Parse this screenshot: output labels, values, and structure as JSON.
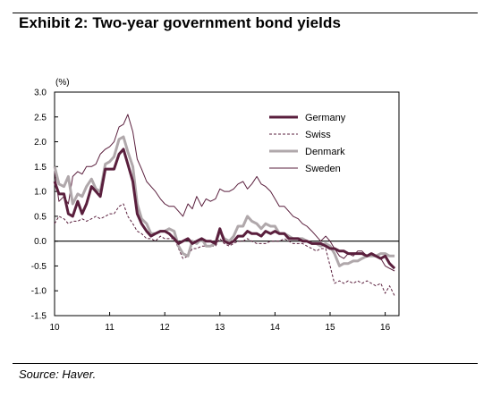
{
  "title": "Exhibit 2: Two-year government bond yields",
  "source": "Source:  Haver.",
  "chart_data": {
    "type": "line",
    "title": "Two-year government bond yields",
    "unit_label": "(%)",
    "xlabel": "",
    "ylabel": "",
    "xlim": [
      2010,
      2016.25
    ],
    "ylim": [
      -1.5,
      3.0
    ],
    "y_ticks": [
      3.0,
      2.5,
      2.0,
      1.5,
      1.0,
      0.5,
      0.0,
      -0.5,
      -1.0,
      -1.5
    ],
    "y_tick_labels": [
      "3.0",
      "2.5",
      "2.0",
      "1.5",
      "1.0",
      "0.5",
      "0.0",
      "-0.5",
      "-1.0",
      "-1.5"
    ],
    "x_ticks": [
      2010,
      2011,
      2012,
      2013,
      2014,
      2015,
      2016
    ],
    "x_tick_labels": [
      "10",
      "11",
      "12",
      "13",
      "14",
      "15",
      "16"
    ],
    "grid": false,
    "zero_line": true,
    "legend_position": "top-right",
    "series": [
      {
        "name": "Germany",
        "color": "#5a1f3d",
        "style": "thick-solid",
        "x": [
          2010.0,
          2010.08,
          2010.17,
          2010.25,
          2010.33,
          2010.42,
          2010.5,
          2010.58,
          2010.67,
          2010.75,
          2010.83,
          2010.92,
          2011.0,
          2011.08,
          2011.17,
          2011.25,
          2011.33,
          2011.42,
          2011.5,
          2011.58,
          2011.67,
          2011.75,
          2011.83,
          2011.92,
          2012.0,
          2012.08,
          2012.17,
          2012.25,
          2012.33,
          2012.42,
          2012.5,
          2012.58,
          2012.67,
          2012.75,
          2012.83,
          2012.92,
          2013.0,
          2013.08,
          2013.17,
          2013.25,
          2013.33,
          2013.42,
          2013.5,
          2013.58,
          2013.67,
          2013.75,
          2013.83,
          2013.92,
          2014.0,
          2014.08,
          2014.17,
          2014.25,
          2014.33,
          2014.42,
          2014.5,
          2014.58,
          2014.67,
          2014.75,
          2014.83,
          2014.92,
          2015.0,
          2015.08,
          2015.17,
          2015.25,
          2015.33,
          2015.42,
          2015.5,
          2015.58,
          2015.67,
          2015.75,
          2015.83,
          2015.92,
          2016.0,
          2016.08,
          2016.17
        ],
        "values": [
          1.2,
          0.95,
          0.95,
          0.55,
          0.5,
          0.8,
          0.55,
          0.75,
          1.1,
          1.0,
          0.9,
          1.45,
          1.45,
          1.45,
          1.75,
          1.85,
          1.55,
          1.2,
          0.55,
          0.35,
          0.2,
          0.1,
          0.15,
          0.2,
          0.2,
          0.15,
          0.05,
          -0.05,
          0.0,
          0.05,
          -0.05,
          0.0,
          0.05,
          0.0,
          0.0,
          -0.05,
          0.25,
          0.0,
          -0.05,
          0.0,
          0.1,
          0.1,
          0.2,
          0.15,
          0.15,
          0.1,
          0.2,
          0.15,
          0.2,
          0.15,
          0.15,
          0.05,
          0.05,
          0.05,
          0.0,
          0.0,
          -0.05,
          -0.05,
          -0.05,
          -0.1,
          -0.15,
          -0.15,
          -0.2,
          -0.2,
          -0.25,
          -0.25,
          -0.25,
          -0.25,
          -0.3,
          -0.25,
          -0.3,
          -0.35,
          -0.3,
          -0.45,
          -0.55
        ]
      },
      {
        "name": "Swiss",
        "color": "#5a1f3d",
        "style": "dashed",
        "x": [
          2010.0,
          2010.08,
          2010.17,
          2010.25,
          2010.33,
          2010.42,
          2010.5,
          2010.58,
          2010.67,
          2010.75,
          2010.83,
          2010.92,
          2011.0,
          2011.08,
          2011.17,
          2011.25,
          2011.33,
          2011.42,
          2011.5,
          2011.58,
          2011.67,
          2011.75,
          2011.83,
          2011.92,
          2012.0,
          2012.08,
          2012.17,
          2012.25,
          2012.33,
          2012.42,
          2012.5,
          2012.58,
          2012.67,
          2012.75,
          2012.83,
          2012.92,
          2013.0,
          2013.08,
          2013.17,
          2013.25,
          2013.33,
          2013.42,
          2013.5,
          2013.58,
          2013.67,
          2013.75,
          2013.83,
          2013.92,
          2014.0,
          2014.08,
          2014.17,
          2014.25,
          2014.33,
          2014.42,
          2014.5,
          2014.58,
          2014.67,
          2014.75,
          2014.83,
          2014.92,
          2015.0,
          2015.08,
          2015.17,
          2015.25,
          2015.33,
          2015.42,
          2015.5,
          2015.58,
          2015.67,
          2015.75,
          2015.83,
          2015.92,
          2016.0,
          2016.08,
          2016.17
        ],
        "values": [
          0.35,
          0.5,
          0.45,
          0.35,
          0.4,
          0.4,
          0.45,
          0.4,
          0.45,
          0.5,
          0.45,
          0.5,
          0.55,
          0.55,
          0.7,
          0.75,
          0.5,
          0.35,
          0.2,
          0.15,
          0.05,
          0.05,
          0.0,
          0.1,
          0.05,
          0.05,
          0.05,
          -0.15,
          -0.35,
          -0.3,
          -0.15,
          -0.15,
          -0.1,
          -0.1,
          -0.1,
          -0.1,
          0.05,
          -0.05,
          -0.1,
          -0.05,
          0.0,
          0.0,
          0.05,
          0.0,
          -0.05,
          -0.05,
          -0.05,
          0.0,
          0.0,
          0.0,
          0.05,
          0.0,
          -0.05,
          -0.05,
          -0.05,
          -0.1,
          -0.15,
          -0.2,
          -0.15,
          -0.15,
          -0.5,
          -0.85,
          -0.8,
          -0.85,
          -0.8,
          -0.85,
          -0.8,
          -0.85,
          -0.8,
          -0.85,
          -0.9,
          -0.85,
          -1.05,
          -0.9,
          -1.1
        ]
      },
      {
        "name": "Denmark",
        "color": "#b0a8ab",
        "style": "thick-solid",
        "x": [
          2010.0,
          2010.08,
          2010.17,
          2010.25,
          2010.33,
          2010.42,
          2010.5,
          2010.58,
          2010.67,
          2010.75,
          2010.83,
          2010.92,
          2011.0,
          2011.08,
          2011.17,
          2011.25,
          2011.33,
          2011.42,
          2011.5,
          2011.58,
          2011.67,
          2011.75,
          2011.83,
          2011.92,
          2012.0,
          2012.08,
          2012.17,
          2012.25,
          2012.33,
          2012.42,
          2012.5,
          2012.58,
          2012.67,
          2012.75,
          2012.83,
          2012.92,
          2013.0,
          2013.08,
          2013.17,
          2013.25,
          2013.33,
          2013.42,
          2013.5,
          2013.58,
          2013.67,
          2013.75,
          2013.83,
          2013.92,
          2014.0,
          2014.08,
          2014.17,
          2014.25,
          2014.33,
          2014.42,
          2014.5,
          2014.58,
          2014.67,
          2014.75,
          2014.83,
          2014.92,
          2015.0,
          2015.08,
          2015.17,
          2015.25,
          2015.33,
          2015.42,
          2015.5,
          2015.58,
          2015.67,
          2015.75,
          2015.83,
          2015.92,
          2016.0,
          2016.08,
          2016.17
        ],
        "values": [
          1.5,
          1.15,
          1.1,
          1.3,
          0.75,
          0.95,
          0.9,
          1.1,
          1.25,
          1.05,
          1.0,
          1.55,
          1.6,
          1.7,
          2.05,
          2.1,
          1.8,
          1.5,
          0.75,
          0.45,
          0.35,
          0.15,
          0.15,
          0.2,
          0.2,
          0.25,
          0.2,
          -0.1,
          -0.25,
          -0.3,
          0.0,
          -0.05,
          0.05,
          -0.1,
          -0.1,
          -0.05,
          0.2,
          0.05,
          0.0,
          0.1,
          0.3,
          0.3,
          0.5,
          0.4,
          0.35,
          0.25,
          0.35,
          0.3,
          0.3,
          0.15,
          0.15,
          0.1,
          0.05,
          0.05,
          0.05,
          0.0,
          -0.05,
          -0.05,
          -0.1,
          -0.05,
          -0.1,
          -0.25,
          -0.5,
          -0.45,
          -0.45,
          -0.4,
          -0.4,
          -0.35,
          -0.3,
          -0.3,
          -0.3,
          -0.25,
          -0.25,
          -0.3,
          -0.3
        ]
      },
      {
        "name": "Sweden",
        "color": "#5a1f3d",
        "style": "thin-solid",
        "x": [
          2010.0,
          2010.08,
          2010.17,
          2010.25,
          2010.33,
          2010.42,
          2010.5,
          2010.58,
          2010.67,
          2010.75,
          2010.83,
          2010.92,
          2011.0,
          2011.08,
          2011.17,
          2011.25,
          2011.33,
          2011.42,
          2011.5,
          2011.58,
          2011.67,
          2011.75,
          2011.83,
          2011.92,
          2012.0,
          2012.08,
          2012.17,
          2012.25,
          2012.33,
          2012.42,
          2012.5,
          2012.58,
          2012.67,
          2012.75,
          2012.83,
          2012.92,
          2013.0,
          2013.08,
          2013.17,
          2013.25,
          2013.33,
          2013.42,
          2013.5,
          2013.58,
          2013.67,
          2013.75,
          2013.83,
          2013.92,
          2014.0,
          2014.08,
          2014.17,
          2014.25,
          2014.33,
          2014.42,
          2014.5,
          2014.58,
          2014.67,
          2014.75,
          2014.83,
          2014.92,
          2015.0,
          2015.08,
          2015.17,
          2015.25,
          2015.33,
          2015.42,
          2015.5,
          2015.58,
          2015.67,
          2015.75,
          2015.83,
          2015.92,
          2016.0,
          2016.08,
          2016.17
        ],
        "values": [
          1.4,
          0.8,
          0.9,
          0.75,
          1.3,
          1.4,
          1.35,
          1.5,
          1.5,
          1.55,
          1.75,
          1.85,
          1.9,
          2.0,
          2.3,
          2.35,
          2.55,
          2.2,
          1.65,
          1.45,
          1.2,
          1.1,
          1.0,
          0.85,
          0.75,
          0.7,
          0.7,
          0.6,
          0.5,
          0.75,
          0.65,
          0.9,
          0.7,
          0.85,
          0.8,
          0.85,
          1.05,
          1.0,
          1.0,
          1.05,
          1.15,
          1.2,
          1.05,
          1.15,
          1.3,
          1.15,
          1.1,
          1.0,
          0.85,
          0.7,
          0.7,
          0.6,
          0.5,
          0.45,
          0.35,
          0.3,
          0.2,
          0.1,
          0.0,
          0.1,
          0.0,
          -0.15,
          -0.3,
          -0.35,
          -0.25,
          -0.3,
          -0.2,
          -0.2,
          -0.3,
          -0.3,
          -0.3,
          -0.35,
          -0.5,
          -0.55,
          -0.6
        ]
      }
    ]
  }
}
